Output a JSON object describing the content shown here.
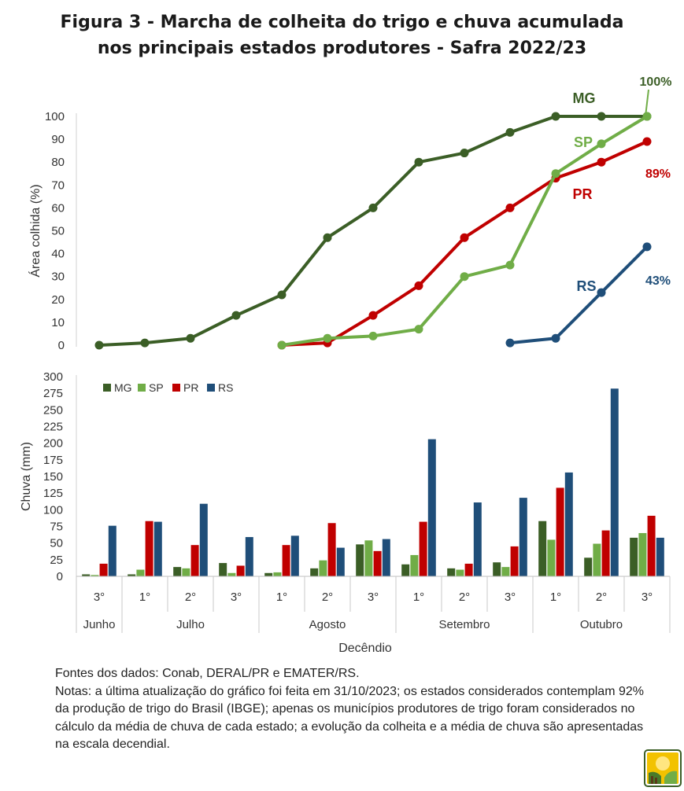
{
  "title_line1": "Figura 3 - Marcha de colheita do trigo e chuva acumulada",
  "title_line2": "nos principais estados produtores - Safra 2022/23",
  "chart_data": [
    {
      "type": "line",
      "ylabel": "Área colhida (%)",
      "ylim": [
        0,
        100
      ],
      "yticks": [
        0,
        10,
        20,
        30,
        40,
        50,
        60,
        70,
        80,
        90,
        100
      ],
      "categories": [
        "3°",
        "1°",
        "2°",
        "3°",
        "1°",
        "2°",
        "3°",
        "1°",
        "2°",
        "3°",
        "1°",
        "2°",
        "3°"
      ],
      "series": [
        {
          "name": "MG",
          "color": "#3b5e26",
          "values": [
            0,
            1,
            3,
            13,
            22,
            47,
            60,
            80,
            84,
            93,
            100,
            100,
            100
          ]
        },
        {
          "name": "PR",
          "color": "#c00000",
          "values": [
            null,
            null,
            null,
            null,
            0,
            1,
            13,
            26,
            47,
            60,
            73,
            80,
            89
          ]
        },
        {
          "name": "SP",
          "color": "#70ad47",
          "values": [
            null,
            null,
            null,
            null,
            0,
            3,
            4,
            7,
            30,
            35,
            75,
            88,
            100
          ]
        },
        {
          "name": "RS",
          "color": "#1f4e79",
          "values": [
            null,
            null,
            null,
            null,
            null,
            null,
            null,
            null,
            null,
            1,
            3,
            23,
            43
          ]
        }
      ],
      "annotations": {
        "mg_final": "100%",
        "pr_final": "89%",
        "rs_final": "43%"
      }
    },
    {
      "type": "bar",
      "ylabel": "Chuva (mm)",
      "xlabel": "Decêndio",
      "ylim": [
        0,
        300
      ],
      "yticks": [
        0,
        25,
        50,
        75,
        100,
        125,
        150,
        175,
        200,
        225,
        250,
        275,
        300
      ],
      "categories": [
        "3°",
        "1°",
        "2°",
        "3°",
        "1°",
        "2°",
        "3°",
        "1°",
        "2°",
        "3°",
        "1°",
        "2°",
        "3°"
      ],
      "months": [
        {
          "name": "Junho",
          "span": 1
        },
        {
          "name": "Julho",
          "span": 3
        },
        {
          "name": "Agosto",
          "span": 3
        },
        {
          "name": "Setembro",
          "span": 3
        },
        {
          "name": "Outubro",
          "span": 3
        }
      ],
      "legend_position": "top-left",
      "series": [
        {
          "name": "MG",
          "color": "#3b5e26",
          "values": [
            3,
            3,
            14,
            20,
            5,
            12,
            48,
            18,
            12,
            21,
            83,
            28,
            58
          ]
        },
        {
          "name": "SP",
          "color": "#70ad47",
          "values": [
            2,
            10,
            12,
            5,
            6,
            24,
            54,
            32,
            10,
            14,
            55,
            49,
            65
          ]
        },
        {
          "name": "PR",
          "color": "#c00000",
          "values": [
            19,
            83,
            47,
            16,
            47,
            80,
            38,
            82,
            19,
            45,
            133,
            69,
            91
          ]
        },
        {
          "name": "RS",
          "color": "#1f4e79",
          "values": [
            76,
            82,
            109,
            59,
            61,
            43,
            56,
            206,
            111,
            118,
            156,
            282,
            58
          ]
        }
      ]
    }
  ],
  "notes": {
    "sources": "Fontes dos dados: Conab, DERAL/PR e EMATER/RS.",
    "notes": "Notas: a última atualização do gráfico foi feita em 31/10/2023; os estados considerados contemplam 92% da produção de trigo do Brasil (IBGE); apenas os municípios produtores de trigo foram considerados no cálculo da média de chuva de cada estado; a evolução da colheita e a média de chuva são apresentadas na escala decendial."
  },
  "logo_icon": "wheat-logo-icon"
}
